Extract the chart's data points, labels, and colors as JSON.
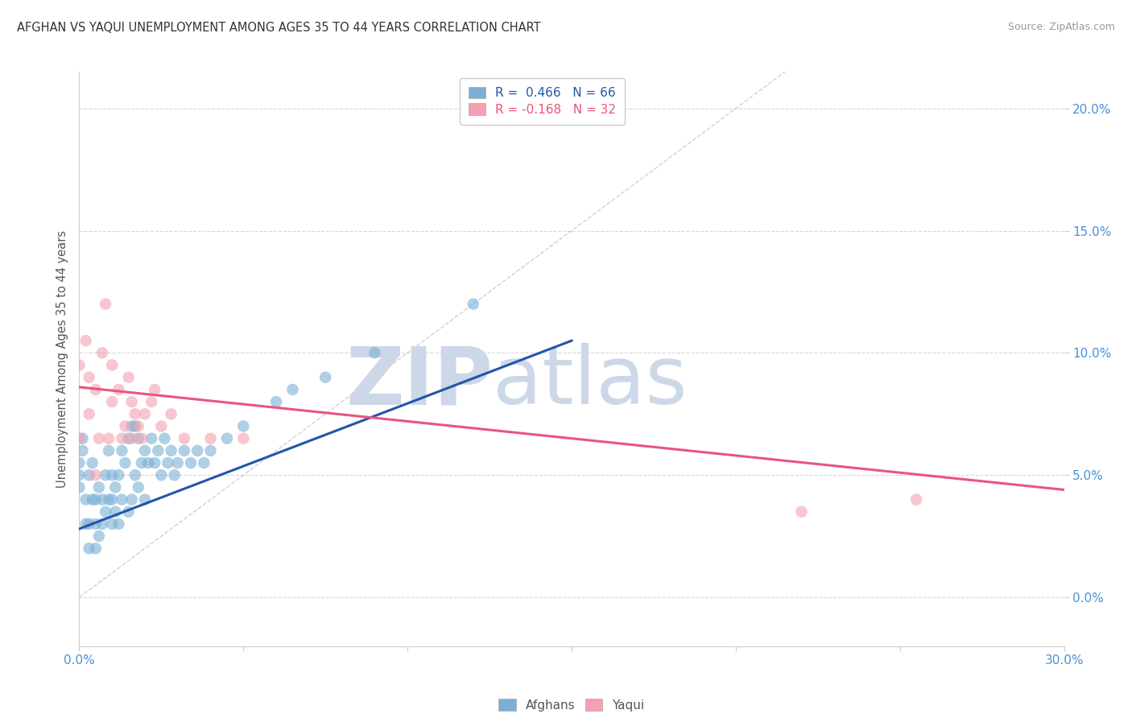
{
  "title": "AFGHAN VS YAQUI UNEMPLOYMENT AMONG AGES 35 TO 44 YEARS CORRELATION CHART",
  "source": "Source: ZipAtlas.com",
  "ylabel": "Unemployment Among Ages 35 to 44 years",
  "xlim": [
    0.0,
    0.3
  ],
  "ylim": [
    -0.02,
    0.215
  ],
  "plot_ylim": [
    0.0,
    0.2
  ],
  "xticks": [
    0.0,
    0.05,
    0.1,
    0.15,
    0.2,
    0.25,
    0.3
  ],
  "yticks": [
    0.0,
    0.05,
    0.1,
    0.15,
    0.2
  ],
  "ytick_labels_right": [
    "0.0%",
    "5.0%",
    "10.0%",
    "15.0%",
    "20.0%"
  ],
  "xtick_labels": [
    "0.0%",
    "",
    "",
    "",
    "",
    "",
    "30.0%"
  ],
  "background_color": "#ffffff",
  "grid_color": "#d8d8d8",
  "watermark_zip": "ZIP",
  "watermark_atlas": "atlas",
  "watermark_color": "#ccd8e8",
  "afghan_color": "#7bafd4",
  "yaqui_color": "#f4a0b0",
  "afghan_line_color": "#2255aa",
  "yaqui_line_color": "#e85580",
  "afghan_R": 0.466,
  "afghan_N": 66,
  "yaqui_R": -0.168,
  "yaqui_N": 32,
  "afghan_line_x0": 0.0,
  "afghan_line_y0": 0.028,
  "afghan_line_x1": 0.15,
  "afghan_line_y1": 0.105,
  "yaqui_line_x0": 0.0,
  "yaqui_line_y0": 0.086,
  "yaqui_line_x1": 0.3,
  "yaqui_line_y1": 0.044,
  "afghan_x": [
    0.0,
    0.0,
    0.0,
    0.001,
    0.001,
    0.002,
    0.002,
    0.003,
    0.003,
    0.003,
    0.004,
    0.004,
    0.005,
    0.005,
    0.005,
    0.006,
    0.006,
    0.007,
    0.007,
    0.008,
    0.008,
    0.009,
    0.009,
    0.01,
    0.01,
    0.01,
    0.011,
    0.011,
    0.012,
    0.012,
    0.013,
    0.013,
    0.014,
    0.015,
    0.015,
    0.016,
    0.016,
    0.017,
    0.017,
    0.018,
    0.018,
    0.019,
    0.02,
    0.02,
    0.021,
    0.022,
    0.023,
    0.024,
    0.025,
    0.026,
    0.027,
    0.028,
    0.029,
    0.03,
    0.032,
    0.034,
    0.036,
    0.038,
    0.04,
    0.045,
    0.05,
    0.06,
    0.065,
    0.075,
    0.09,
    0.12
  ],
  "afghan_y": [
    0.045,
    0.05,
    0.055,
    0.06,
    0.065,
    0.03,
    0.04,
    0.02,
    0.03,
    0.05,
    0.04,
    0.055,
    0.02,
    0.03,
    0.04,
    0.025,
    0.045,
    0.03,
    0.04,
    0.035,
    0.05,
    0.04,
    0.06,
    0.03,
    0.04,
    0.05,
    0.035,
    0.045,
    0.03,
    0.05,
    0.04,
    0.06,
    0.055,
    0.035,
    0.065,
    0.04,
    0.07,
    0.05,
    0.07,
    0.045,
    0.065,
    0.055,
    0.04,
    0.06,
    0.055,
    0.065,
    0.055,
    0.06,
    0.05,
    0.065,
    0.055,
    0.06,
    0.05,
    0.055,
    0.06,
    0.055,
    0.06,
    0.055,
    0.06,
    0.065,
    0.07,
    0.08,
    0.085,
    0.09,
    0.1,
    0.12
  ],
  "yaqui_x": [
    0.0,
    0.0,
    0.002,
    0.003,
    0.003,
    0.005,
    0.005,
    0.006,
    0.007,
    0.008,
    0.009,
    0.01,
    0.01,
    0.012,
    0.013,
    0.014,
    0.015,
    0.016,
    0.016,
    0.017,
    0.018,
    0.019,
    0.02,
    0.022,
    0.023,
    0.025,
    0.028,
    0.032,
    0.04,
    0.05,
    0.22,
    0.255
  ],
  "yaqui_y": [
    0.065,
    0.095,
    0.105,
    0.075,
    0.09,
    0.05,
    0.085,
    0.065,
    0.1,
    0.12,
    0.065,
    0.08,
    0.095,
    0.085,
    0.065,
    0.07,
    0.09,
    0.065,
    0.08,
    0.075,
    0.07,
    0.065,
    0.075,
    0.08,
    0.085,
    0.07,
    0.075,
    0.065,
    0.065,
    0.065,
    0.035,
    0.04
  ]
}
